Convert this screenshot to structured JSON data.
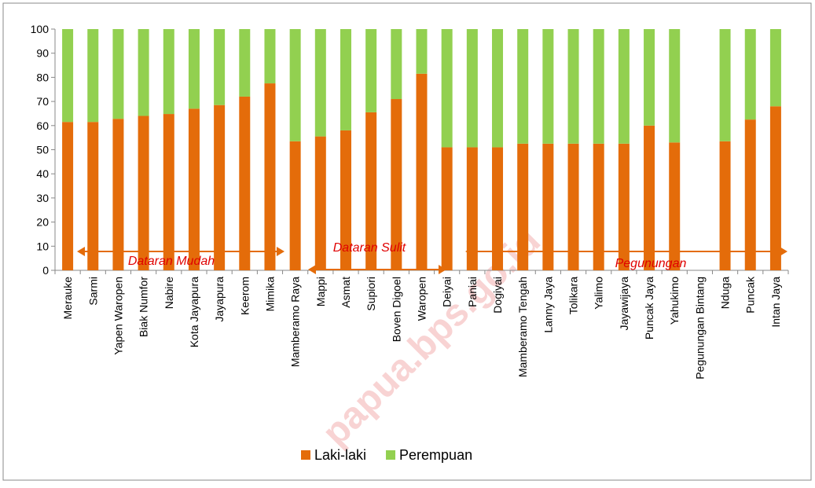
{
  "chart_data": {
    "type": "stacked_bar",
    "categories": [
      "Merauke",
      "Sarmi",
      "Yapen Waropen",
      "Biak Numfor",
      "Nabire",
      "Kota Jayapura",
      "Jayapura",
      "Keerom",
      "Mimika",
      "Mamberamo Raya",
      "Mappi",
      "Asmat",
      "Supiori",
      "Boven Digoel",
      "Waropen",
      "Deiyai",
      "Paniai",
      "Dogiyai",
      "Mamberamo Tengah",
      "Lanny Jaya",
      "Tolikara",
      "Yalimo",
      "Jayawijaya",
      "Puncak Jaya",
      "Yahukimo",
      "Pegunungan Bintang",
      "Nduga",
      "Puncak",
      "Intan Jaya"
    ],
    "series": [
      {
        "name": "Laki-laki",
        "color": "#e46c0a",
        "values": [
          61.5,
          61.5,
          62.8,
          64,
          64.8,
          67,
          68.5,
          72,
          77.5,
          53.5,
          55.5,
          58,
          65.5,
          71,
          81.5,
          51,
          51,
          51,
          52.5,
          52.5,
          52.5,
          52.5,
          52.5,
          60,
          53,
          null,
          53.5,
          62.5,
          68
        ]
      },
      {
        "name": "Perempuan",
        "color": "#92d050",
        "values": [
          38.5,
          38.5,
          37.2,
          36,
          35.2,
          33,
          31.5,
          28,
          22.5,
          46.5,
          44.5,
          42,
          34.5,
          29,
          18.5,
          49,
          49,
          49,
          47.5,
          47.5,
          47.5,
          47.5,
          47.5,
          40,
          47,
          null,
          46.5,
          37.5,
          32
        ]
      }
    ],
    "ylim": [
      0,
      100
    ],
    "yticks": [
      0,
      10,
      20,
      30,
      40,
      50,
      60,
      70,
      80,
      90,
      100
    ],
    "annotations": [
      "Dataran Mudah",
      "Dataran Sulit",
      "Pegunungan"
    ],
    "watermark": "papua.bps.go.id",
    "legend": "bottom"
  }
}
